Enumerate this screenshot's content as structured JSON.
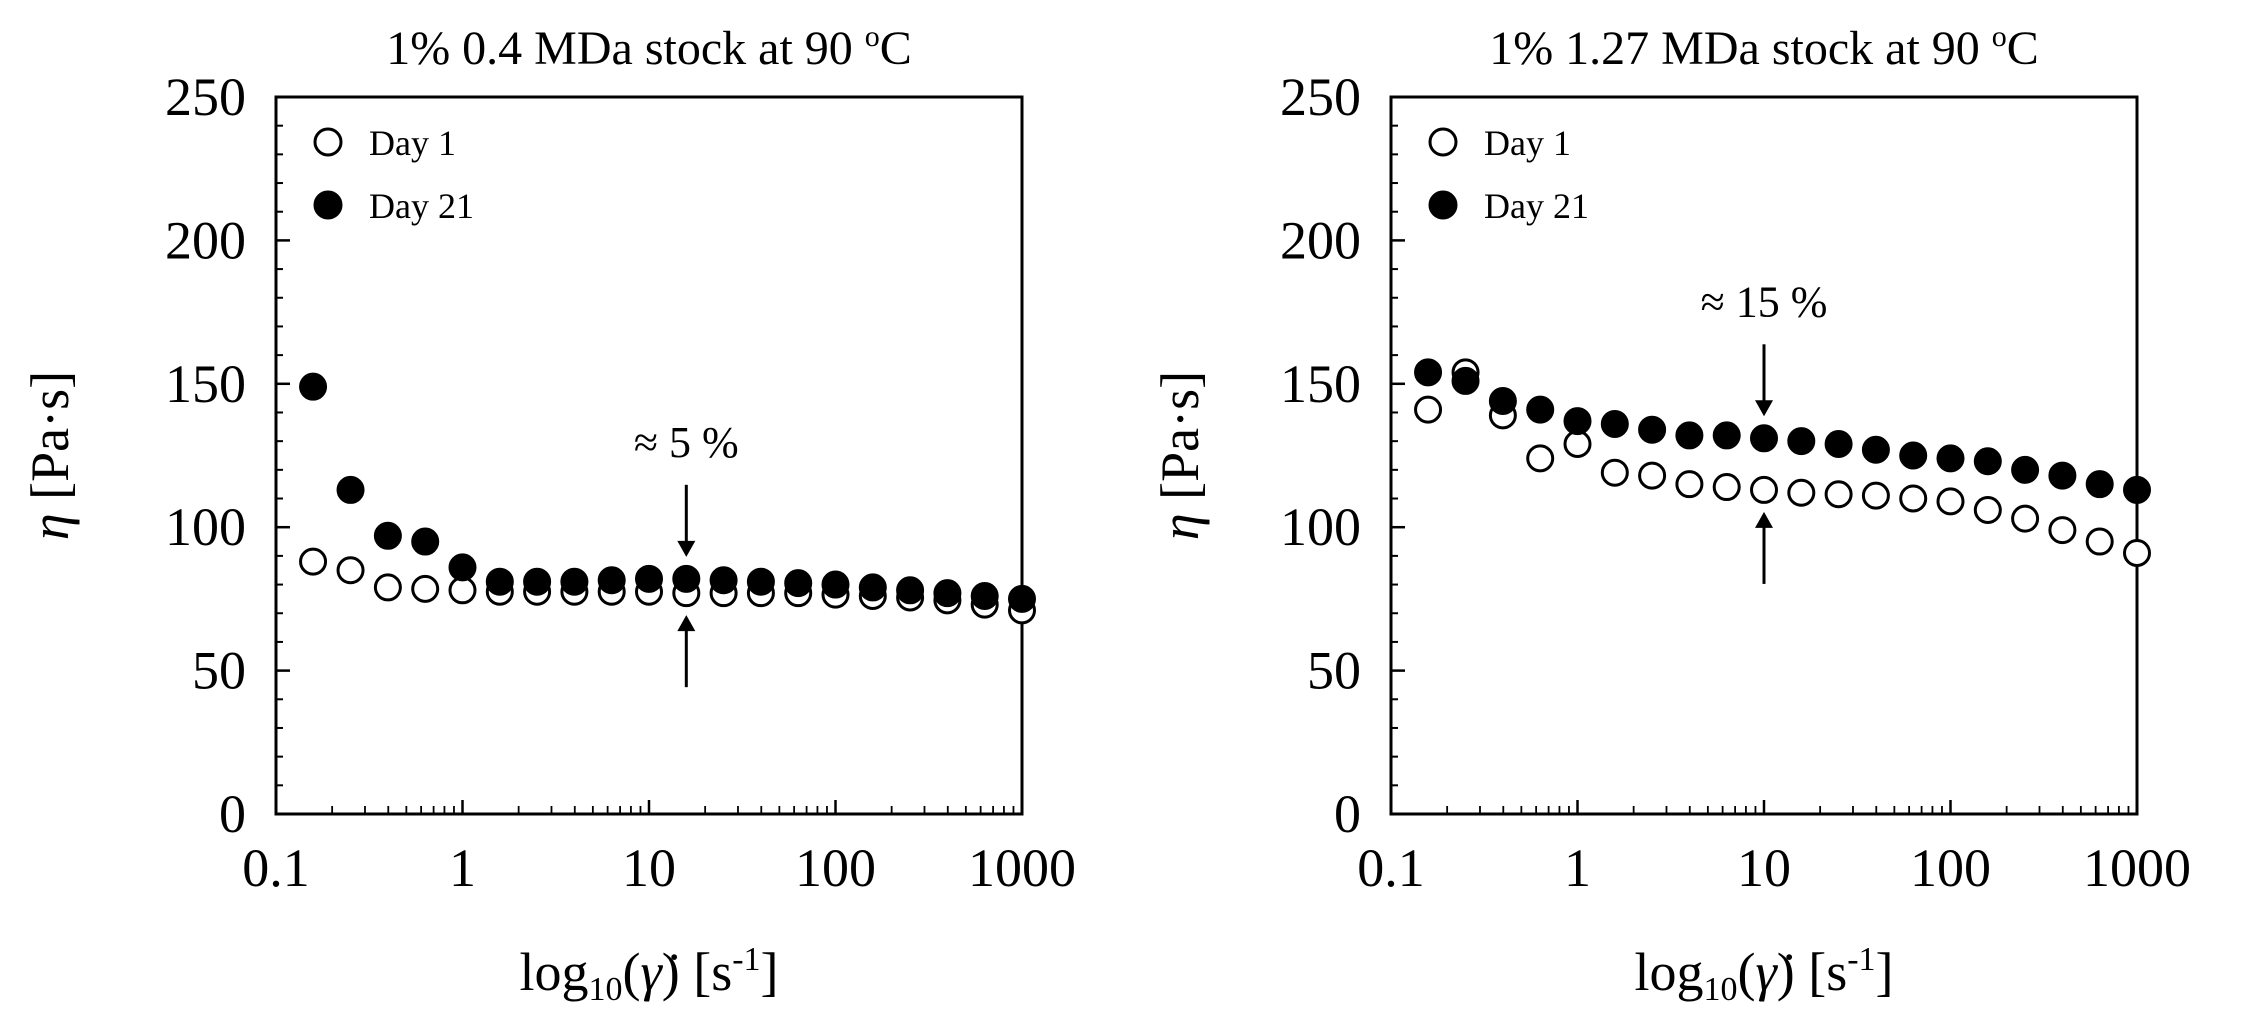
{
  "chart_data": [
    {
      "type": "scatter",
      "title": "1% 0.4 MDa stock at 90 °C",
      "title_main": "1% 0.4 MDa stock at 90 ",
      "title_sup": "o",
      "title_unit": "C",
      "xscale": "log",
      "xlim": [
        0.1,
        1000
      ],
      "ylim": [
        0,
        250
      ],
      "xticks": [
        "0.1",
        "1",
        "10",
        "100",
        "1000"
      ],
      "yticks": [
        "0",
        "50",
        "100",
        "150",
        "200",
        "250"
      ],
      "ylabel": "η [Pa·s]",
      "ylabel_sym": "η",
      "ylabel_unit": " [Pa·s]",
      "xlabel": "log10(γ̇) [s-1]",
      "xlabel_parts": {
        "pre": "log",
        "sub": "10",
        "open": "(",
        "gamma": "γ̇",
        "close": ") [s",
        "sup": "-1",
        "end": "]"
      },
      "legend_position": "top-left",
      "series": [
        {
          "name": "Day 1",
          "marker": "open-circle",
          "x": [
            0.158,
            0.251,
            0.398,
            0.631,
            1.0,
            1.585,
            2.512,
            3.981,
            6.31,
            10,
            15.85,
            25.12,
            39.81,
            63.1,
            100,
            158.5,
            251.2,
            398.1,
            631,
            1000
          ],
          "y": [
            88,
            85,
            79,
            78.5,
            78,
            77.5,
            77.5,
            77.5,
            77.5,
            77.5,
            77,
            77,
            77,
            77,
            76.5,
            76,
            75.5,
            74.5,
            73,
            71
          ]
        },
        {
          "name": "Day 21",
          "marker": "filled-circle",
          "x": [
            0.158,
            0.251,
            0.398,
            0.631,
            1.0,
            1.585,
            2.512,
            3.981,
            6.31,
            10,
            15.85,
            25.12,
            39.81,
            63.1,
            100,
            158.5,
            251.2,
            398.1,
            631,
            1000
          ],
          "y": [
            149,
            113,
            97,
            95,
            86,
            81,
            81,
            81,
            81.5,
            82,
            82,
            81.5,
            81,
            80.5,
            80,
            79,
            78,
            77,
            76,
            75
          ]
        }
      ],
      "annotations": [
        {
          "text": "≈ 5 %",
          "x": 15.85,
          "arrow_down_to": 82,
          "arrow_up_to": 77
        }
      ]
    },
    {
      "type": "scatter",
      "title": "1% 1.27 MDa stock at 90 °C",
      "title_main": "1% 1.27 MDa stock at 90 ",
      "title_sup": "o",
      "title_unit": "C",
      "xscale": "log",
      "xlim": [
        0.1,
        1000
      ],
      "ylim": [
        0,
        250
      ],
      "xticks": [
        "0.1",
        "1",
        "10",
        "100",
        "1000"
      ],
      "yticks": [
        "0",
        "50",
        "100",
        "150",
        "200",
        "250"
      ],
      "ylabel": "η [Pa·s]",
      "ylabel_sym": "η",
      "ylabel_unit": " [Pa·s]",
      "xlabel": "log10(γ̇) [s-1]",
      "xlabel_parts": {
        "pre": "log",
        "sub": "10",
        "open": "(",
        "gamma": "γ̇",
        "close": ") [s",
        "sup": "-1",
        "end": "]"
      },
      "legend_position": "top-left",
      "series": [
        {
          "name": "Day 1",
          "marker": "open-circle",
          "x": [
            0.158,
            0.251,
            0.398,
            0.631,
            1.0,
            1.585,
            2.512,
            3.981,
            6.31,
            10,
            15.85,
            25.12,
            39.81,
            63.1,
            100,
            158.5,
            251.2,
            398.1,
            631,
            1000
          ],
          "y": [
            141,
            154,
            139,
            124,
            129,
            119,
            118,
            115,
            114,
            113,
            112,
            111.5,
            111,
            110,
            109,
            106,
            103,
            99,
            95,
            91
          ]
        },
        {
          "name": "Day 21",
          "marker": "filled-circle",
          "x": [
            0.158,
            0.251,
            0.398,
            0.631,
            1.0,
            1.585,
            2.512,
            3.981,
            6.31,
            10,
            15.85,
            25.12,
            39.81,
            63.1,
            100,
            158.5,
            251.2,
            398.1,
            631,
            1000
          ],
          "y": [
            154,
            151,
            144,
            141,
            137,
            136,
            134,
            132,
            132,
            131,
            130,
            129,
            127,
            125,
            124,
            123,
            120,
            118,
            115,
            113
          ]
        }
      ],
      "annotations": [
        {
          "text": "≈ 15 %",
          "x": 10,
          "arrow_down_to": 131,
          "arrow_up_to": 113
        }
      ]
    }
  ]
}
